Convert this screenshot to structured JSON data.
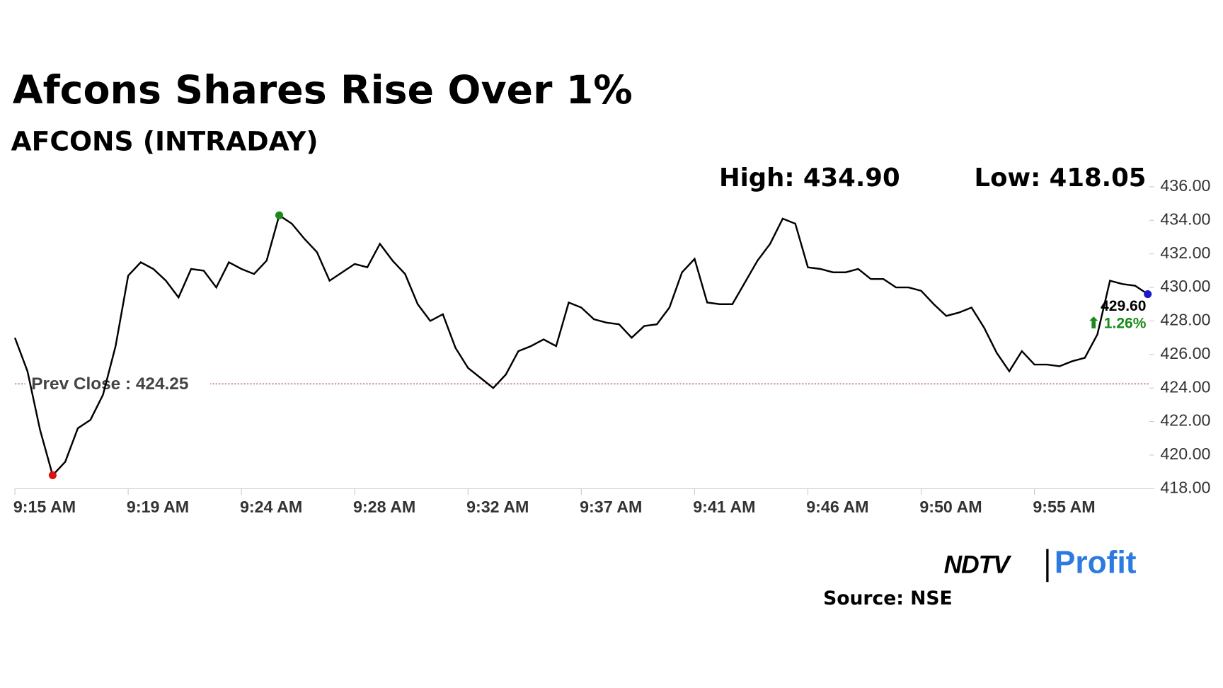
{
  "chart_data": {
    "type": "line",
    "title": "Afcons Shares Rise Over 1%",
    "subtitle": "AFCONS (INTRADAY)",
    "high_label": "High: 434.90",
    "low_label": "Low: 418.05",
    "categories": [
      "9:15 AM",
      null,
      null,
      null,
      null,
      null,
      null,
      null,
      null,
      "9:19 AM",
      null,
      null,
      null,
      null,
      null,
      null,
      null,
      null,
      "9:24 AM",
      null,
      null,
      null,
      null,
      null,
      null,
      null,
      null,
      "9:28 AM",
      null,
      null,
      null,
      null,
      null,
      null,
      null,
      null,
      "9:32 AM",
      null,
      null,
      null,
      null,
      null,
      null,
      null,
      null,
      "9:37 AM",
      null,
      null,
      null,
      null,
      null,
      null,
      null,
      null,
      "9:41 AM",
      null,
      null,
      null,
      null,
      null,
      null,
      null,
      null,
      "9:46 AM",
      null,
      null,
      null,
      null,
      null,
      null,
      null,
      null,
      "9:50 AM",
      null,
      null,
      null,
      null,
      null,
      null,
      null,
      null,
      "9:55 AM",
      null,
      null,
      null,
      null,
      null,
      null,
      null,
      null,
      null
    ],
    "series": [
      {
        "name": "AFCONS",
        "color": "#000000",
        "values": [
          427.0,
          425.0,
          421.5,
          418.8,
          419.6,
          421.6,
          422.1,
          423.6,
          426.5,
          430.7,
          431.5,
          431.1,
          430.4,
          429.4,
          431.1,
          431.0,
          430.0,
          431.5,
          431.1,
          430.8,
          431.6,
          434.3,
          433.8,
          432.9,
          432.1,
          430.4,
          430.9,
          431.4,
          431.2,
          432.6,
          431.6,
          430.8,
          429.0,
          428.0,
          428.4,
          426.4,
          425.2,
          424.6,
          424.0,
          424.8,
          426.2,
          426.5,
          426.9,
          426.5,
          429.1,
          428.8,
          428.1,
          427.9,
          427.8,
          427.0,
          427.7,
          427.8,
          428.8,
          430.9,
          431.7,
          429.1,
          429.0,
          429.0,
          430.3,
          431.6,
          432.6,
          434.1,
          433.8,
          431.2,
          431.1,
          430.9,
          430.9,
          431.1,
          430.5,
          430.5,
          430.0,
          430.0,
          429.8,
          429.0,
          428.3,
          428.5,
          428.8,
          427.6,
          426.1,
          425.0,
          426.2,
          425.4,
          425.4,
          425.3,
          425.6,
          425.8,
          427.2,
          430.4,
          430.2,
          430.1,
          429.6
        ]
      }
    ],
    "high_index": 21,
    "low_index": 3,
    "high_color": "#1a8a1a",
    "low_color": "#e01010",
    "last_color": "#1a1acc",
    "last_value_label": "429.60",
    "change_label": "⬆ 1.26%",
    "change_color": "#1a8a1a",
    "prev_close": {
      "value": 424.25,
      "label": "Prev Close : 424.25"
    },
    "prev_close_color": "#a52a2a",
    "ylim": [
      418,
      436
    ],
    "yticks": [
      {
        "value": 418,
        "label": "418.00"
      },
      {
        "value": 420,
        "label": "420.00"
      },
      {
        "value": 422,
        "label": "422.00"
      },
      {
        "value": 424,
        "label": "424.00"
      },
      {
        "value": 426,
        "label": "426.00"
      },
      {
        "value": 428,
        "label": "428.00"
      },
      {
        "value": 430,
        "label": "430.00"
      },
      {
        "value": 432,
        "label": "432.00"
      },
      {
        "value": 434,
        "label": "434.00"
      },
      {
        "value": 436,
        "label": "436.00"
      }
    ],
    "logo_left": "NDTV",
    "logo_right": "Profit",
    "source": "Source: NSE"
  }
}
